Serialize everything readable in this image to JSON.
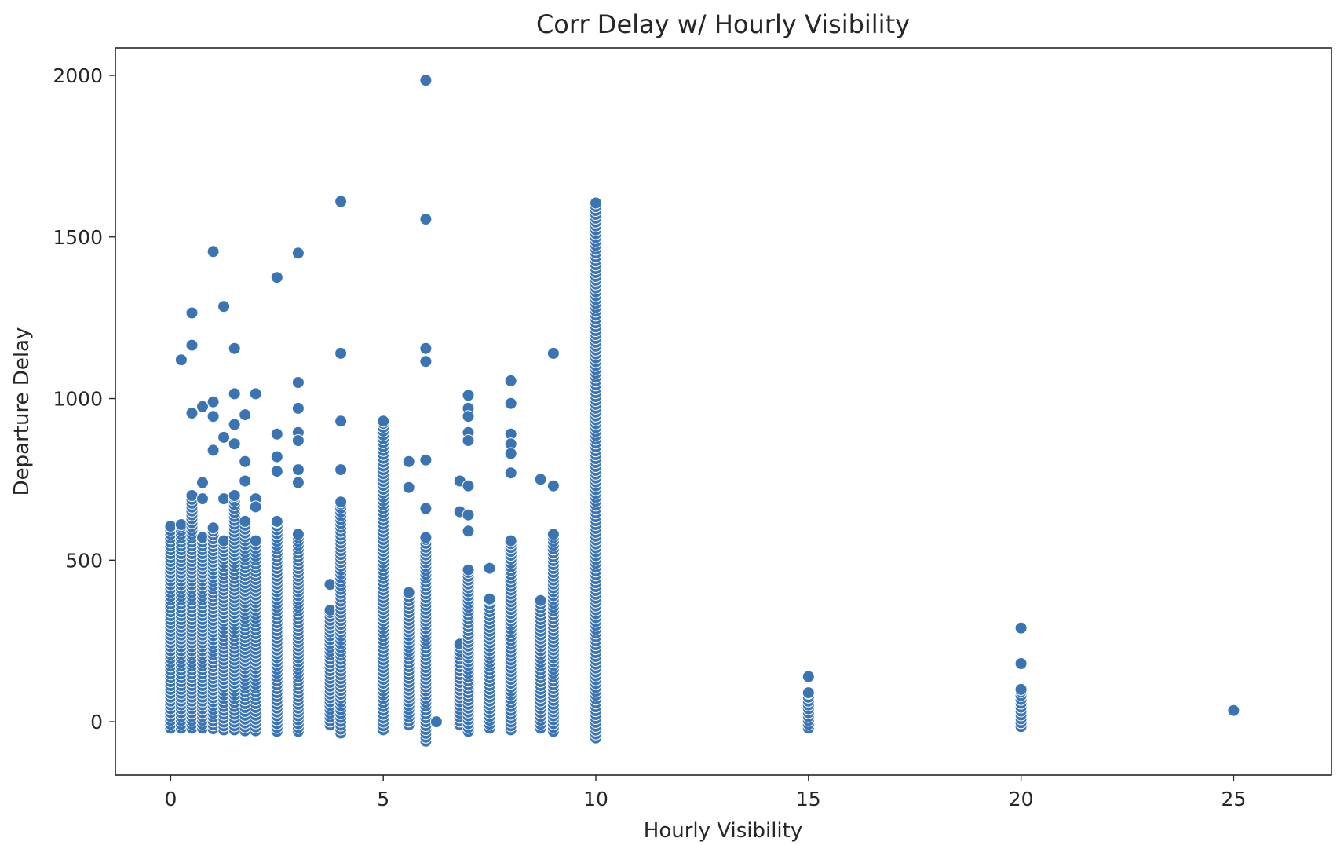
{
  "chart_data": {
    "type": "scatter",
    "title": "Corr Delay w/ Hourly Visibility",
    "xlabel": "Hourly Visibility",
    "ylabel": "Departure Delay",
    "xlim": [
      -1.3,
      27.3
    ],
    "ylim": [
      -165,
      2085
    ],
    "xticks": [
      0,
      5,
      10,
      15,
      20,
      25
    ],
    "yticks": [
      0,
      500,
      1000,
      1500,
      2000
    ],
    "grid": false,
    "marker_color": "#3a74b2",
    "marker_edge_color": "#ffffff",
    "columns": [
      {
        "x": 0.0,
        "max": 605,
        "min": -20,
        "outliers": []
      },
      {
        "x": 0.25,
        "max": 610,
        "min": -20,
        "outliers": [
          1120
        ]
      },
      {
        "x": 0.5,
        "max": 700,
        "min": -20,
        "outliers": [
          1265,
          1165,
          955
        ]
      },
      {
        "x": 0.75,
        "max": 570,
        "min": -20,
        "outliers": [
          975,
          740,
          690
        ]
      },
      {
        "x": 1.0,
        "max": 600,
        "min": -22,
        "outliers": [
          1455,
          990,
          945,
          840
        ]
      },
      {
        "x": 1.25,
        "max": 560,
        "min": -25,
        "outliers": [
          1285,
          880,
          690
        ]
      },
      {
        "x": 1.5,
        "max": 700,
        "min": -25,
        "outliers": [
          1155,
          1015,
          920,
          860
        ]
      },
      {
        "x": 1.75,
        "max": 620,
        "min": -28,
        "outliers": [
          950,
          805,
          745
        ]
      },
      {
        "x": 2.0,
        "max": 560,
        "min": -28,
        "outliers": [
          1015,
          690,
          665
        ]
      },
      {
        "x": 2.5,
        "max": 620,
        "min": -30,
        "outliers": [
          1375,
          890,
          820,
          775
        ]
      },
      {
        "x": 3.0,
        "max": 580,
        "min": -30,
        "outliers": [
          1450,
          1050,
          970,
          895,
          870,
          780,
          740
        ]
      },
      {
        "x": 3.75,
        "max": 345,
        "min": -10,
        "outliers": [
          425
        ]
      },
      {
        "x": 4.0,
        "max": 680,
        "min": -35,
        "outliers": [
          1610,
          1140,
          930,
          780
        ]
      },
      {
        "x": 5.0,
        "max": 930,
        "min": -25,
        "outliers": []
      },
      {
        "x": 5.6,
        "max": 400,
        "min": -10,
        "outliers": [
          805,
          725
        ]
      },
      {
        "x": 6.0,
        "max": 570,
        "min": -60,
        "outliers": [
          1985,
          1555,
          1155,
          1115,
          810,
          660
        ]
      },
      {
        "x": 6.25,
        "max": 0,
        "min": 0,
        "outliers": []
      },
      {
        "x": 6.8,
        "max": 240,
        "min": -10,
        "outliers": [
          745,
          650
        ]
      },
      {
        "x": 7.0,
        "max": 470,
        "min": -30,
        "outliers": [
          1010,
          970,
          945,
          895,
          870,
          730,
          640,
          590
        ]
      },
      {
        "x": 7.5,
        "max": 380,
        "min": -20,
        "outliers": [
          475
        ]
      },
      {
        "x": 8.0,
        "max": 560,
        "min": -25,
        "outliers": [
          1055,
          985,
          890,
          860,
          830,
          770
        ]
      },
      {
        "x": 8.7,
        "max": 375,
        "min": -20,
        "outliers": [
          750
        ]
      },
      {
        "x": 9.0,
        "max": 580,
        "min": -30,
        "outliers": [
          1140,
          730
        ]
      },
      {
        "x": 10.0,
        "max": 1605,
        "min": -50,
        "outliers": []
      },
      {
        "x": 15.0,
        "max": 90,
        "min": -20,
        "outliers": [
          140
        ]
      },
      {
        "x": 20.0,
        "max": 100,
        "min": -15,
        "outliers": [
          290,
          180
        ]
      },
      {
        "x": 25.0,
        "max": 35,
        "min": 35,
        "outliers": []
      }
    ]
  }
}
